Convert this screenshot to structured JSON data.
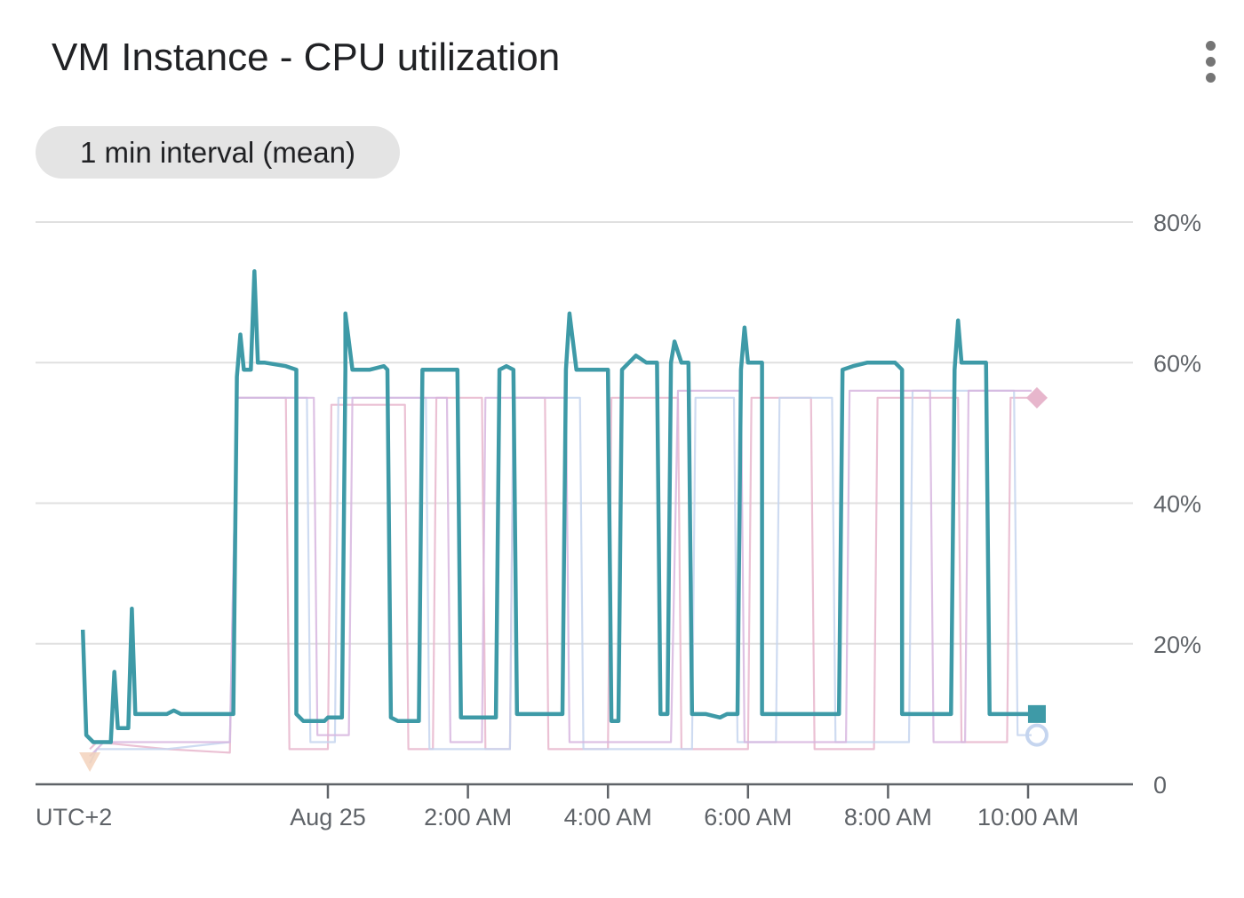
{
  "header": {
    "title": "VM Instance - CPU utilization",
    "menu_icon": "more-vert-icon",
    "aggregation_chip": "1 min interval (mean)"
  },
  "chart_data": {
    "type": "line",
    "title": "VM Instance - CPU utilization",
    "timezone_label": "UTC+2",
    "x_ticks": [
      {
        "label": "Aug 25",
        "hour": 0
      },
      {
        "label": "2:00 AM",
        "hour": 2
      },
      {
        "label": "4:00 AM",
        "hour": 4
      },
      {
        "label": "6:00 AM",
        "hour": 6
      },
      {
        "label": "8:00 AM",
        "hour": 8
      },
      {
        "label": "10:00 AM",
        "hour": 10
      }
    ],
    "y_ticks": [
      {
        "label": "0",
        "value": 0
      },
      {
        "label": "20%",
        "value": 20
      },
      {
        "label": "40%",
        "value": 40
      },
      {
        "label": "60%",
        "value": 60
      },
      {
        "label": "80%",
        "value": 80
      }
    ],
    "xlim": [
      -4.2,
      11.5
    ],
    "ylim": [
      0,
      80
    ],
    "grid": true,
    "y_axis_side": "right",
    "series": [
      {
        "color": "#e7b6cc",
        "marker": "diamond",
        "emphasis": "faded",
        "points": [
          [
            -3.4,
            5
          ],
          [
            -3.3,
            6
          ],
          [
            -2.3,
            5
          ],
          [
            -1.4,
            4.5
          ],
          [
            -1.3,
            55
          ],
          [
            -0.6,
            55
          ],
          [
            -0.55,
            5
          ],
          [
            0,
            5
          ],
          [
            0.05,
            54
          ],
          [
            1.1,
            54
          ],
          [
            1.15,
            5
          ],
          [
            1.5,
            5
          ],
          [
            1.55,
            55
          ],
          [
            2.2,
            55
          ],
          [
            2.25,
            5
          ],
          [
            2.6,
            5
          ],
          [
            2.65,
            55
          ],
          [
            3.1,
            55
          ],
          [
            3.15,
            5
          ],
          [
            4.0,
            5
          ],
          [
            4.05,
            55
          ],
          [
            5.0,
            55
          ],
          [
            5.05,
            5
          ],
          [
            6.0,
            5
          ],
          [
            6.05,
            55
          ],
          [
            6.9,
            55
          ],
          [
            6.95,
            5
          ],
          [
            7.8,
            5
          ],
          [
            7.85,
            55
          ],
          [
            9.0,
            55
          ],
          [
            9.05,
            6
          ],
          [
            9.7,
            6
          ],
          [
            9.75,
            55
          ],
          [
            10.05,
            55
          ]
        ]
      },
      {
        "color": "#c5d5ef",
        "marker": "circle",
        "emphasis": "faded",
        "points": [
          [
            -3.4,
            3
          ],
          [
            -3.3,
            5
          ],
          [
            -2.3,
            5
          ],
          [
            -1.4,
            6
          ],
          [
            -1.3,
            55
          ],
          [
            -0.3,
            55
          ],
          [
            -0.25,
            6
          ],
          [
            0.1,
            6
          ],
          [
            0.15,
            55
          ],
          [
            1.4,
            55
          ],
          [
            1.45,
            5
          ],
          [
            2.6,
            5
          ],
          [
            2.65,
            55
          ],
          [
            3.6,
            55
          ],
          [
            3.65,
            5
          ],
          [
            5.2,
            5
          ],
          [
            5.25,
            55
          ],
          [
            5.8,
            55
          ],
          [
            5.85,
            6
          ],
          [
            6.4,
            6
          ],
          [
            6.45,
            55
          ],
          [
            7.2,
            55
          ],
          [
            7.25,
            6
          ],
          [
            8.3,
            6
          ],
          [
            8.35,
            56
          ],
          [
            9.8,
            56
          ],
          [
            9.85,
            7
          ],
          [
            10.05,
            7
          ]
        ]
      },
      {
        "color": "#d7b6df",
        "marker": "none",
        "emphasis": "faded",
        "points": [
          [
            -3.4,
            4
          ],
          [
            -3.2,
            6
          ],
          [
            -2.3,
            6
          ],
          [
            -1.4,
            6
          ],
          [
            -1.3,
            55
          ],
          [
            -0.2,
            55
          ],
          [
            -0.15,
            7
          ],
          [
            0.3,
            7
          ],
          [
            0.35,
            55
          ],
          [
            1.7,
            55
          ],
          [
            1.75,
            6
          ],
          [
            2.2,
            6
          ],
          [
            2.25,
            55
          ],
          [
            3.4,
            55
          ],
          [
            3.45,
            6
          ],
          [
            4.9,
            6
          ],
          [
            5.0,
            56
          ],
          [
            5.9,
            56
          ],
          [
            5.95,
            6
          ],
          [
            7.4,
            6
          ],
          [
            7.45,
            56
          ],
          [
            8.6,
            56
          ],
          [
            8.65,
            6
          ],
          [
            9.1,
            6
          ],
          [
            9.15,
            56
          ],
          [
            10.05,
            56
          ]
        ]
      },
      {
        "color": "#3e9aa7",
        "marker": "square",
        "emphasis": "highlighted",
        "points": [
          [
            -3.5,
            22
          ],
          [
            -3.45,
            7
          ],
          [
            -3.35,
            6
          ],
          [
            -3.1,
            6
          ],
          [
            -3.05,
            16
          ],
          [
            -3.0,
            8
          ],
          [
            -2.85,
            8
          ],
          [
            -2.8,
            25
          ],
          [
            -2.75,
            10
          ],
          [
            -2.5,
            10
          ],
          [
            -2.3,
            10
          ],
          [
            -2.2,
            10.5
          ],
          [
            -2.1,
            10
          ],
          [
            -1.9,
            10
          ],
          [
            -1.6,
            10
          ],
          [
            -1.35,
            10
          ],
          [
            -1.3,
            58
          ],
          [
            -1.25,
            64
          ],
          [
            -1.2,
            59
          ],
          [
            -1.1,
            59
          ],
          [
            -1.05,
            73
          ],
          [
            -1.0,
            60
          ],
          [
            -0.9,
            60
          ],
          [
            -0.6,
            59.5
          ],
          [
            -0.45,
            59
          ],
          [
            -0.45,
            10
          ],
          [
            -0.35,
            9
          ],
          [
            -0.1,
            9
          ],
          [
            -0.05,
            9
          ],
          [
            0.0,
            9.5
          ],
          [
            0.2,
            9.5
          ],
          [
            0.25,
            59
          ],
          [
            0.25,
            67
          ],
          [
            0.35,
            59
          ],
          [
            0.5,
            59
          ],
          [
            0.6,
            59
          ],
          [
            0.8,
            59.5
          ],
          [
            0.85,
            59
          ],
          [
            0.9,
            9.5
          ],
          [
            1.0,
            9
          ],
          [
            1.2,
            9
          ],
          [
            1.3,
            9
          ],
          [
            1.35,
            59
          ],
          [
            1.6,
            59
          ],
          [
            1.85,
            59
          ],
          [
            1.9,
            9.5
          ],
          [
            2.1,
            9.5
          ],
          [
            2.4,
            9.5
          ],
          [
            2.45,
            59
          ],
          [
            2.55,
            59.5
          ],
          [
            2.65,
            59
          ],
          [
            2.7,
            10
          ],
          [
            3.0,
            10
          ],
          [
            3.2,
            10
          ],
          [
            3.35,
            10
          ],
          [
            3.4,
            59
          ],
          [
            3.45,
            67
          ],
          [
            3.55,
            59
          ],
          [
            3.7,
            59
          ],
          [
            4.0,
            59
          ],
          [
            4.05,
            9
          ],
          [
            4.15,
            9
          ],
          [
            4.2,
            59
          ],
          [
            4.3,
            60
          ],
          [
            4.4,
            61
          ],
          [
            4.55,
            60
          ],
          [
            4.65,
            60
          ],
          [
            4.7,
            60
          ],
          [
            4.75,
            10
          ],
          [
            4.85,
            10
          ],
          [
            4.9,
            60
          ],
          [
            4.95,
            63
          ],
          [
            5.05,
            60
          ],
          [
            5.15,
            60
          ],
          [
            5.2,
            10
          ],
          [
            5.4,
            10
          ],
          [
            5.6,
            9.5
          ],
          [
            5.7,
            10
          ],
          [
            5.85,
            10
          ],
          [
            5.9,
            59
          ],
          [
            5.95,
            65
          ],
          [
            6.0,
            60
          ],
          [
            6.1,
            60
          ],
          [
            6.2,
            60
          ],
          [
            6.2,
            10
          ],
          [
            6.4,
            10
          ],
          [
            6.6,
            10
          ],
          [
            6.85,
            10
          ],
          [
            7.0,
            10
          ],
          [
            7.3,
            10
          ],
          [
            7.35,
            59
          ],
          [
            7.5,
            59.5
          ],
          [
            7.7,
            60
          ],
          [
            7.9,
            60
          ],
          [
            8.1,
            60
          ],
          [
            8.2,
            59
          ],
          [
            8.2,
            10
          ],
          [
            8.4,
            10
          ],
          [
            8.6,
            10
          ],
          [
            8.9,
            10
          ],
          [
            8.95,
            59
          ],
          [
            9.0,
            66
          ],
          [
            9.05,
            60
          ],
          [
            9.2,
            60
          ],
          [
            9.35,
            60
          ],
          [
            9.4,
            60
          ],
          [
            9.45,
            10
          ],
          [
            9.6,
            10
          ],
          [
            9.8,
            10
          ],
          [
            10.0,
            10
          ],
          [
            10.05,
            10
          ]
        ]
      }
    ]
  }
}
